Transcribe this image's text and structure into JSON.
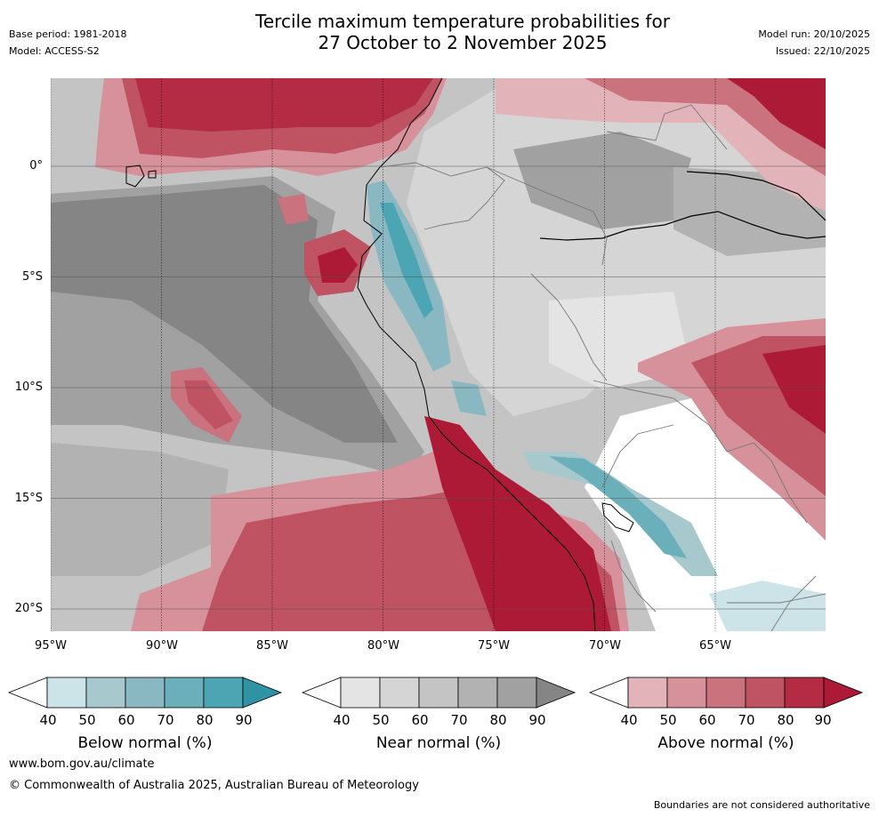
{
  "header": {
    "title_line1": "Tercile maximum temperature probabilities for",
    "title_line2": "27 October to 2 November 2025",
    "base_period": "Base period: 1981-2018",
    "model": "Model: ACCESS-S2",
    "model_run": "Model run: 20/10/2025",
    "issued": "Issued: 22/10/2025"
  },
  "map": {
    "lat_labels": [
      "0°",
      "5°S",
      "10°S",
      "15°S",
      "20°S"
    ],
    "lon_labels": [
      "95°W",
      "90°W",
      "85°W",
      "80°W",
      "75°W",
      "70°W",
      "65°W"
    ]
  },
  "legend": {
    "below": {
      "title": "Below normal (%)",
      "ticks": [
        "40",
        "50",
        "60",
        "70",
        "80",
        "90"
      ],
      "colors": [
        "#ffffff",
        "#cce3e8",
        "#a7c8cd",
        "#89b8c2",
        "#6aafba",
        "#4ba5b2",
        "#2f93a3"
      ]
    },
    "near": {
      "title": "Near normal (%)",
      "ticks": [
        "40",
        "50",
        "60",
        "70",
        "80",
        "90"
      ],
      "colors": [
        "#ffffff",
        "#e4e4e4",
        "#d5d5d5",
        "#c4c4c4",
        "#b2b2b2",
        "#a1a1a1",
        "#858585"
      ]
    },
    "above": {
      "title": "Above normal (%)",
      "ticks": [
        "40",
        "50",
        "60",
        "70",
        "80",
        "90"
      ],
      "colors": [
        "#ffffff",
        "#e2b4ba",
        "#d6919a",
        "#ca727d",
        "#bf5362",
        "#b32c43",
        "#ad1a35"
      ]
    }
  },
  "footer": {
    "website": "www.bom.gov.au/climate",
    "copyright": "© Commonwealth of Australia 2025, Australian Bureau of Meteorology",
    "disclaimer": "Boundaries are not considered authoritative"
  }
}
